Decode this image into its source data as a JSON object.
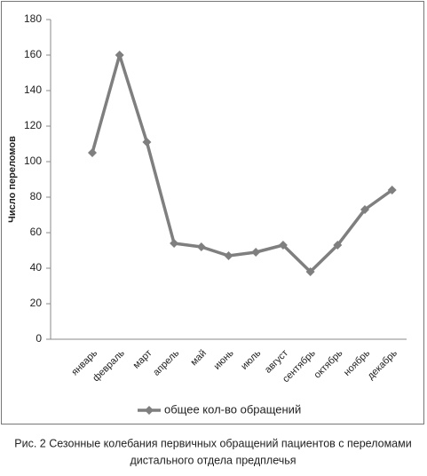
{
  "chart_data": {
    "type": "line",
    "y_label": "Число переломов",
    "categories": [
      "январь",
      "февраль",
      "март",
      "апрель",
      "май",
      "июнь",
      "июль",
      "август",
      "сентябрь",
      "октябрь",
      "ноябрь",
      "декабрь"
    ],
    "series": [
      {
        "name": "общее кол-во обращений",
        "color": "#7f7f7f",
        "values": [
          105,
          160,
          111,
          54,
          52,
          47,
          49,
          53,
          38,
          53,
          73,
          84
        ]
      }
    ],
    "ylim": [
      0,
      180
    ],
    "yticks": [
      0,
      20,
      40,
      60,
      80,
      100,
      120,
      140,
      160,
      180
    ],
    "grid": false,
    "legend": "bottom"
  },
  "caption": [
    "Рис. 2 Сезонные колебания первичных обращений пациентов с переломами",
    "дистального отдела предплечья"
  ]
}
